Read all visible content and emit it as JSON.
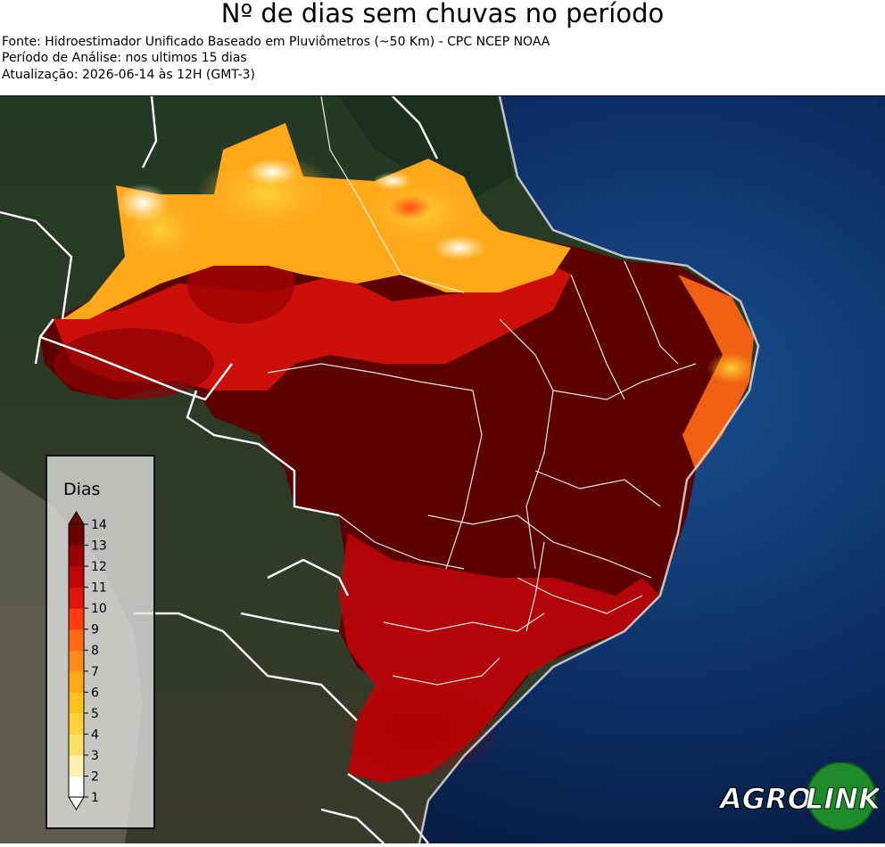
{
  "header": {
    "title": "Nº de dias sem chuvas no período",
    "source": "Fonte: Hidroestimador Unificado Baseado em Pluviômetros (~50 Km) - CPC NCEP NOAA",
    "period": "Período de Análise: nos ultimos 15 dias",
    "updated": "Atualização: 2026-06-14 às 12H (GMT-3)"
  },
  "legend": {
    "title": "Dias",
    "min": 1,
    "max": 14,
    "ticks": [
      "1",
      "2",
      "3",
      "4",
      "5",
      "6",
      "7",
      "8",
      "9",
      "10",
      "11",
      "12",
      "13",
      "14"
    ],
    "colors": [
      "#ffffff",
      "#fff3b0",
      "#ffe066",
      "#ffd23a",
      "#ffc21f",
      "#ffa81a",
      "#ff8c1a",
      "#ff6a14",
      "#ff3d0f",
      "#e0140a",
      "#c0060a",
      "#9a0306",
      "#700102"
    ]
  },
  "map": {
    "ocean_color": "#0a2a5c",
    "land_color": "#1d2e1f",
    "dry_color": "#5c0000",
    "border_color": "#ffffff"
  },
  "logo": {
    "left": "AGRO",
    "right": "LINK"
  }
}
